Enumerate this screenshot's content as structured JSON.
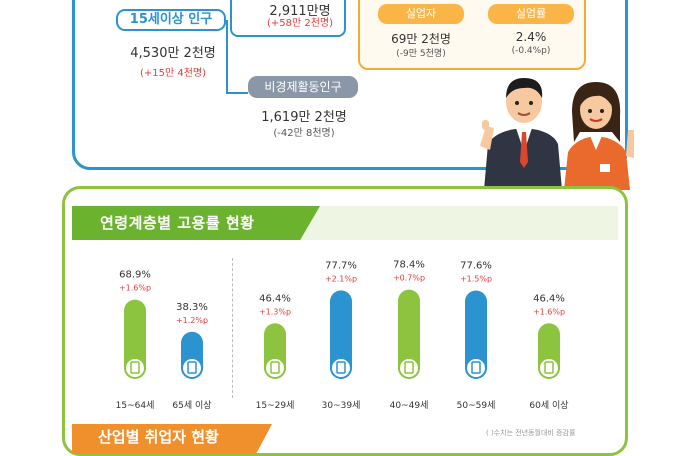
{
  "population": {
    "pop15_label": "15세이상 인구",
    "pop15_value": "4,530만 2천명",
    "pop15_delta": "(+15만 4천명)",
    "econ_value": "2,911만명",
    "econ_delta": "(+58만 2천명)",
    "nonecon_label": "비경제활동인구",
    "nonecon_value": "1,619만 2천명",
    "nonecon_delta": "(-42만 8천명)",
    "unemployed_label": "실업자",
    "unemployed_value": "69만 2천명",
    "unemployed_delta": "(-9만 5천명)",
    "unemployment_rate_label": "실업률",
    "unemployment_rate_value": "2.4%",
    "unemployment_rate_delta": "(-0.4%p)"
  },
  "section_title": "연령계층별 고용률 현황",
  "next_section_title": "산업별 취업자 현황",
  "footnote": "( )수치는 전년동월대비 증감률",
  "colors": {
    "green": "#8cc43f",
    "blue": "#2b93cf",
    "orange": "#f4a93b",
    "red": "#e23c3c"
  },
  "chart_data": {
    "type": "bar",
    "title": "연령계층별 고용률 현황",
    "categories": [
      "15~64세",
      "65세 이상",
      "15~29세",
      "30~39세",
      "40~49세",
      "50~59세",
      "60세 이상"
    ],
    "values": [
      68.9,
      38.3,
      46.4,
      77.7,
      78.4,
      77.6,
      46.4
    ],
    "value_labels": [
      "68.9%",
      "38.3%",
      "46.4%",
      "77.7%",
      "78.4%",
      "77.6%",
      "46.4%"
    ],
    "changes": [
      "+1.6%p",
      "+1.2%p",
      "+1.3%p",
      "+2.1%p",
      "+0.7%p",
      "+1.5%p",
      "+1.6%p"
    ],
    "bar_colors": [
      "#8cc43f",
      "#2b93cf",
      "#8cc43f",
      "#2b93cf",
      "#8cc43f",
      "#2b93cf",
      "#8cc43f"
    ],
    "unit": "%"
  }
}
